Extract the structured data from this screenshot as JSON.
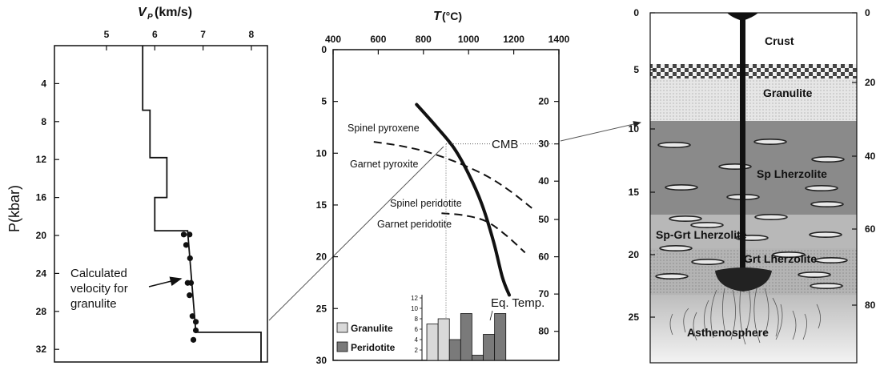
{
  "left_panel": {
    "x_title": "V",
    "x_title_sub": "P",
    "x_title_unit": "(km/s)",
    "y_title": "P(kbar)",
    "x_ticks": [
      "5",
      "6",
      "7",
      "8"
    ],
    "y_ticks": [
      "4",
      "8",
      "12",
      "16",
      "20",
      "24",
      "28",
      "32"
    ],
    "annotation_lines": [
      "Calculated",
      "velocity for",
      "granulite"
    ],
    "velocity_profile": [
      {
        "p": 0,
        "v": 5.75
      },
      {
        "p": 6.8,
        "v": 5.75
      },
      {
        "p": 6.8,
        "v": 5.9
      },
      {
        "p": 11.8,
        "v": 5.9
      },
      {
        "p": 11.8,
        "v": 6.25
      },
      {
        "p": 16,
        "v": 6.25
      },
      {
        "p": 16,
        "v": 6.0
      },
      {
        "p": 19.5,
        "v": 6.0
      },
      {
        "p": 19.5,
        "v": 6.68
      },
      {
        "p": 30.2,
        "v": 6.85
      },
      {
        "p": 30.2,
        "v": 8.2
      },
      {
        "p": 33.4,
        "v": 8.2
      }
    ],
    "granulite_points": [
      {
        "v": 6.6,
        "p": 19.9
      },
      {
        "v": 6.72,
        "p": 19.9
      },
      {
        "v": 6.65,
        "p": 21.0
      },
      {
        "v": 6.73,
        "p": 22.4
      },
      {
        "v": 6.68,
        "p": 25.0
      },
      {
        "v": 6.75,
        "p": 25.0
      },
      {
        "v": 6.72,
        "p": 26.3
      },
      {
        "v": 6.78,
        "p": 28.5
      },
      {
        "v": 6.85,
        "p": 29.1
      },
      {
        "v": 6.85,
        "p": 30.0
      },
      {
        "v": 6.8,
        "p": 31.0
      }
    ]
  },
  "middle_panel": {
    "x_title": "T",
    "x_title_unit": "(°C)",
    "x_ticks": [
      "400",
      "600",
      "800",
      "1000",
      "1200",
      "1400"
    ],
    "y_left_ticks": [
      "0",
      "5",
      "10",
      "15",
      "20",
      "25",
      "30"
    ],
    "y_right_ticks": [
      "20",
      "30",
      "40",
      "50",
      "60",
      "70",
      "80"
    ],
    "labels": {
      "spinel_pyroxene": "Spinel pyroxene",
      "garnet_pyroxite": "Garnet pyroxite",
      "spinel_peridotite": "Spinel peridotite",
      "garnet_peridotite": "Garnet peridotite",
      "cmb": "CMB",
      "eq_temp": "Eq. Temp."
    },
    "geotherm": [
      {
        "t": 770,
        "p": 5.3
      },
      {
        "t": 860,
        "p": 7.5
      },
      {
        "t": 935,
        "p": 9.5
      },
      {
        "t": 1000,
        "p": 12
      },
      {
        "t": 1060,
        "p": 15
      },
      {
        "t": 1110,
        "p": 18.5
      },
      {
        "t": 1150,
        "p": 22
      },
      {
        "t": 1180,
        "p": 23.7
      }
    ],
    "spinel_garnet_pyroxene_boundary": [
      {
        "t": 580,
        "p": 8.9
      },
      {
        "t": 700,
        "p": 9.3
      },
      {
        "t": 820,
        "p": 9.9
      },
      {
        "t": 950,
        "p": 10.9
      },
      {
        "t": 1080,
        "p": 12.2
      },
      {
        "t": 1180,
        "p": 13.6
      },
      {
        "t": 1280,
        "p": 15.3
      }
    ],
    "spinel_garnet_peridotite_boundary": [
      {
        "t": 880,
        "p": 15.8
      },
      {
        "t": 980,
        "p": 16.0
      },
      {
        "t": 1080,
        "p": 16.6
      },
      {
        "t": 1170,
        "p": 18.0
      },
      {
        "t": 1250,
        "p": 19.6
      }
    ],
    "cmb_temperature": 900,
    "cmb_pressure": 9.1,
    "histogram": {
      "y_ticks": [
        "2",
        "4",
        "6",
        "8",
        "10",
        "12"
      ],
      "legend": [
        {
          "label": "Granulite",
          "color": "#d9d9d9"
        },
        {
          "label": "Peridotite",
          "color": "#7a7a7a"
        }
      ],
      "bars": [
        {
          "t": 840,
          "count": 7,
          "type": "Granulite"
        },
        {
          "t": 890,
          "count": 8,
          "type": "Granulite"
        },
        {
          "t": 940,
          "count": 4,
          "type": "Peridotite"
        },
        {
          "t": 990,
          "count": 9,
          "type": "Peridotite"
        },
        {
          "t": 1040,
          "count": 1,
          "type": "Peridotite"
        },
        {
          "t": 1090,
          "count": 5,
          "type": "Peridotite"
        },
        {
          "t": 1140,
          "count": 9,
          "type": "Peridotite"
        }
      ]
    }
  },
  "right_panel": {
    "left_ticks": [
      "0",
      "5",
      "10",
      "15",
      "20",
      "25"
    ],
    "right_ticks": [
      "0",
      "20",
      "40",
      "60",
      "80"
    ],
    "layers": {
      "crust": "Crust",
      "granulite": "Granulite",
      "sp_lherzolite": "Sp Lherzolite",
      "sp_grt_lherzolite": "Sp-Grt  Lherzolite",
      "grt_lherzolite": "Grt  Lherzolite",
      "asthenosphere": "Asthenosphere"
    }
  }
}
